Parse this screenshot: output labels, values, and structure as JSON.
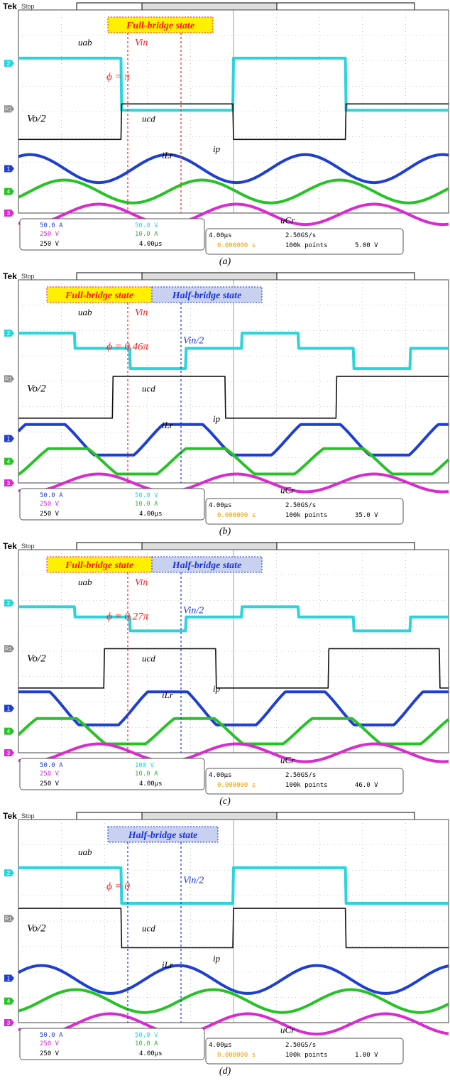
{
  "colors": {
    "ch1": "#1f3fd0",
    "ch2": "#2ad4dc",
    "ch3": "#d82bd0",
    "ch4": "#27c227",
    "ref": "#111111",
    "annotation_red": "#ff1a1a",
    "annotation_blue": "#1a34d8",
    "state_yellow": "#fff000",
    "state_blue": "#c8d2f0",
    "grid": "#9a9a9a"
  },
  "chart_data": [
    {
      "type": "line",
      "panel": "(a)",
      "status": "Stop",
      "state_labels": [
        {
          "text": "Full-bridge state",
          "style": "full"
        }
      ],
      "settings": {
        "ch1": "50.0 A",
        "ch2": "50.0 V",
        "ch3": "250 V",
        "ch4": "10.0 A",
        "ref": "250 V",
        "timebase": "4.00µs",
        "readout_time": "4.00µs",
        "sample_rate": "2.50GS/s",
        "trigger_pos": "0.000000 s",
        "record": "100k points",
        "trigger_ch": "2",
        "trigger_level": "5.00 V"
      },
      "x_div": 10,
      "annotations": {
        "phi": "ϕ = π",
        "vin": "Vin",
        "vo2": "Vo/2"
      },
      "series": [
        {
          "name": "uab",
          "channel": "ch2",
          "kind": "square",
          "levels_div": [
            6.1,
            4.05
          ],
          "period_div": 5.2,
          "phase_div": -0.2,
          "duty": 0.5
        },
        {
          "name": "ucd",
          "channel": "ref",
          "kind": "square",
          "levels_div": [
            4.3,
            2.9
          ],
          "period_div": 5.2,
          "phase_div": 2.4,
          "duty": 0.5
        },
        {
          "name": "ip",
          "channel": "ch1",
          "kind": "sine",
          "center_div": 1.75,
          "amp_div": 0.55,
          "period_div": 3.2,
          "phase_deg": 60
        },
        {
          "name": "iLr",
          "channel": "ch4",
          "kind": "sine",
          "center_div": 0.85,
          "amp_div": 0.45,
          "period_div": 3.2,
          "phase_deg": -30
        },
        {
          "name": "uCr",
          "channel": "ch3",
          "kind": "sine",
          "center_div": -0.05,
          "amp_div": 0.4,
          "period_div": 3.2,
          "phase_deg": -120
        }
      ]
    },
    {
      "type": "line",
      "panel": "(b)",
      "status": "Stop",
      "state_labels": [
        {
          "text": "Full-bridge state",
          "style": "full"
        },
        {
          "text": "Half-bridge state",
          "style": "half"
        }
      ],
      "settings": {
        "ch1": "50.0 A",
        "ch2": "50.0 V",
        "ch3": "250 V",
        "ch4": "10.0 A",
        "ref": "250 V",
        "timebase": "4.00µs",
        "readout_time": "4.00µs",
        "sample_rate": "2.50GS/s",
        "trigger_pos": "0.000000 s",
        "record": "100k points",
        "trigger_ch": "2",
        "trigger_level": "35.0 V"
      },
      "x_div": 10,
      "annotations": {
        "phi": "ϕ = 0.46π",
        "vin": "Vin",
        "vin2": "Vin/2",
        "vo2": "Vo/2"
      },
      "series": [
        {
          "name": "uab",
          "channel": "ch2",
          "kind": "stepped",
          "levels_div": [
            5.9,
            5.3,
            4.5
          ],
          "period_div": 5.2,
          "phase_div": 0.0
        },
        {
          "name": "ucd",
          "channel": "ref",
          "kind": "square",
          "levels_div": [
            4.2,
            2.55
          ],
          "period_div": 5.2,
          "phase_div": 2.2,
          "duty": 0.5
        },
        {
          "name": "ip",
          "channel": "ch1",
          "kind": "trapezoid",
          "center_div": 1.7,
          "amp_div": 0.6,
          "period_div": 3.2,
          "phase_deg": 20
        },
        {
          "name": "iLr",
          "channel": "ch4",
          "kind": "trapezoid",
          "center_div": 0.85,
          "amp_div": 0.5,
          "period_div": 3.2,
          "phase_deg": -40
        },
        {
          "name": "uCr",
          "channel": "ch3",
          "kind": "sine",
          "center_div": 0.0,
          "amp_div": 0.35,
          "period_div": 3.2,
          "phase_deg": -120
        }
      ]
    },
    {
      "type": "line",
      "panel": "(c)",
      "status": "Stop",
      "state_labels": [
        {
          "text": "Full-bridge state",
          "style": "full"
        },
        {
          "text": "Half-bridge state",
          "style": "half"
        }
      ],
      "settings": {
        "ch1": "50.0 A",
        "ch2": "100 V",
        "ch3": "250 V",
        "ch4": "10.0 A",
        "ref": "250 V",
        "timebase": "4.00µs",
        "readout_time": "4.00µs",
        "sample_rate": "2.50GS/s",
        "trigger_pos": "0.000000 s",
        "record": "100k points",
        "trigger_ch": "2",
        "trigger_level": "46.0 V"
      },
      "x_div": 10,
      "annotations": {
        "phi": "ϕ = 0.27π",
        "vin": "Vin",
        "vin2": "Vin/2",
        "vo2": "Vo/2"
      },
      "series": [
        {
          "name": "uab",
          "channel": "ch2",
          "kind": "stepped",
          "levels_div": [
            5.75,
            5.35,
            4.8
          ],
          "period_div": 5.2,
          "phase_div": 0.0
        },
        {
          "name": "ucd",
          "channel": "ref",
          "kind": "square",
          "levels_div": [
            4.1,
            2.55
          ],
          "period_div": 5.2,
          "phase_div": 2.0,
          "duty": 0.5
        },
        {
          "name": "ip",
          "channel": "ch1",
          "kind": "trapezoid",
          "center_div": 1.75,
          "amp_div": 0.65,
          "period_div": 3.2,
          "phase_deg": 60
        },
        {
          "name": "iLr",
          "channel": "ch4",
          "kind": "trapezoid",
          "center_div": 0.85,
          "amp_div": 0.5,
          "period_div": 3.2,
          "phase_deg": -10
        },
        {
          "name": "uCr",
          "channel": "ch3",
          "kind": "sine",
          "center_div": 0.0,
          "amp_div": 0.35,
          "period_div": 3.2,
          "phase_deg": -120
        }
      ]
    },
    {
      "type": "line",
      "panel": "(d)",
      "status": "Stop",
      "state_labels": [
        {
          "text": "Half-bridge state",
          "style": "half"
        }
      ],
      "settings": {
        "ch1": "50.0 A",
        "ch2": "50.0 V",
        "ch3": "250 V",
        "ch4": "10.0 A",
        "ref": "250 V",
        "timebase": "4.00µs",
        "readout_time": "4.00µs",
        "sample_rate": "2.50GS/s",
        "trigger_pos": "0.000000 s",
        "record": "100k points",
        "trigger_ch": "2",
        "trigger_level": "1.00 V"
      },
      "x_div": 10,
      "annotations": {
        "phi": "ϕ = 0",
        "vin2": "Vin/2",
        "vo2": "Vo/2"
      },
      "series": [
        {
          "name": "uab",
          "channel": "ch2",
          "kind": "square",
          "levels_div": [
            6.1,
            4.7
          ],
          "period_div": 5.2,
          "phase_div": -0.2,
          "duty": 0.5
        },
        {
          "name": "ucd",
          "channel": "ref",
          "kind": "square",
          "levels_div": [
            4.5,
            2.95
          ],
          "period_div": 5.2,
          "phase_div": -0.2,
          "duty": 0.5
        },
        {
          "name": "ip",
          "channel": "ch1",
          "kind": "sine",
          "center_div": 1.7,
          "amp_div": 0.55,
          "period_div": 3.2,
          "phase_deg": 30
        },
        {
          "name": "iLr",
          "channel": "ch4",
          "kind": "sine",
          "center_div": 0.85,
          "amp_div": 0.45,
          "period_div": 3.2,
          "phase_deg": -60
        },
        {
          "name": "uCr",
          "channel": "ch3",
          "kind": "sine",
          "center_div": -0.05,
          "amp_div": 0.4,
          "period_div": 3.2,
          "phase_deg": -150
        }
      ]
    }
  ],
  "labels": {
    "tek": "Tek",
    "status_stop": "Stop",
    "ch1_num": "1",
    "ch2_num": "2",
    "ch3_num": "3",
    "ch4_num": "4",
    "ref_num": "R1",
    "bw": "BW",
    "trigger_marker": "T",
    "trigger_slope": "∫",
    "trace_uab": "uab",
    "trace_ucd": "ucd",
    "trace_ip": "ip",
    "trace_iLr": "iLr",
    "trace_uCr": "uCr"
  }
}
